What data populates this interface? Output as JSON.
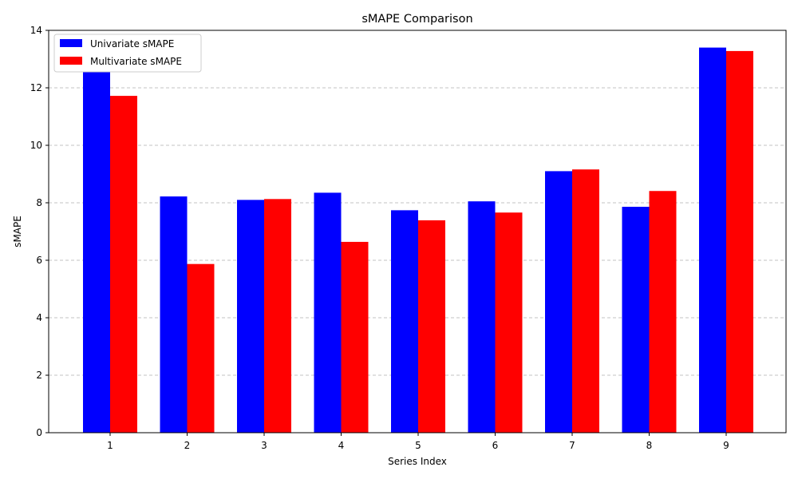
{
  "chart_data": {
    "type": "bar",
    "title": "sMAPE Comparison",
    "xlabel": "Series Index",
    "ylabel": "sMAPE",
    "categories": [
      "1",
      "2",
      "3",
      "4",
      "5",
      "6",
      "7",
      "8",
      "9"
    ],
    "ylim": [
      0,
      14
    ],
    "yticks": [
      0,
      2,
      4,
      6,
      8,
      10,
      12,
      14
    ],
    "grid": "y-dashed",
    "legend_position": "top-left",
    "series": [
      {
        "name": "Univariate sMAPE",
        "color": "#0000ff",
        "values": [
          12.55,
          8.22,
          8.1,
          8.35,
          7.74,
          8.05,
          9.1,
          7.86,
          13.4
        ]
      },
      {
        "name": "Multivariate sMAPE",
        "color": "#ff0000",
        "values": [
          11.72,
          5.87,
          8.13,
          6.64,
          7.39,
          7.66,
          9.16,
          8.41,
          13.28
        ]
      }
    ]
  }
}
